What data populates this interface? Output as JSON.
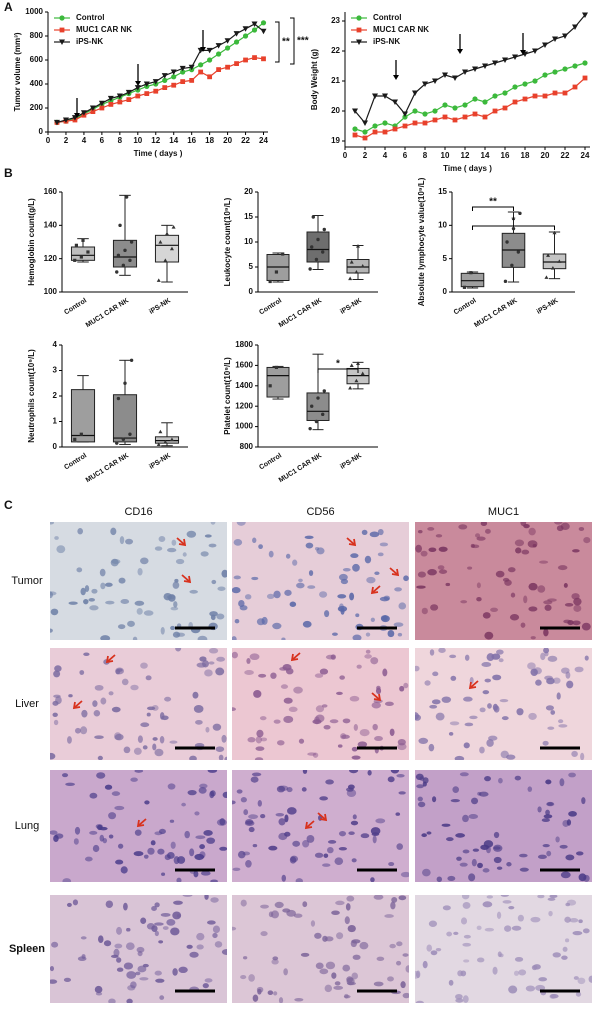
{
  "panel_labels": [
    "A",
    "B",
    "C"
  ],
  "chart_data": [
    {
      "type": "line",
      "y_label": "Tumor volume (mm³)",
      "x_label": "Time ( days )",
      "x": [
        1,
        2,
        3,
        4,
        5,
        6,
        7,
        8,
        9,
        10,
        11,
        12,
        13,
        14,
        15,
        16,
        17,
        18,
        19,
        20,
        21,
        22,
        23,
        24
      ],
      "xlim": [
        0,
        24.5
      ],
      "xticks": [
        0,
        2,
        4,
        6,
        8,
        10,
        12,
        14,
        16,
        18,
        20,
        22,
        24
      ],
      "ylim": [
        0,
        1000
      ],
      "yticks": [
        0,
        200,
        400,
        600,
        800,
        1000
      ],
      "annotations": [
        "**",
        "***"
      ],
      "series": [
        {
          "name": "Control",
          "color": "#3cb93c",
          "marker": "circle",
          "values": [
            80,
            90,
            110,
            150,
            190,
            230,
            260,
            290,
            320,
            350,
            380,
            400,
            430,
            460,
            500,
            520,
            560,
            600,
            650,
            700,
            750,
            800,
            850,
            910
          ]
        },
        {
          "name": "MUC1 CAR NK",
          "color": "#e8412c",
          "marker": "square",
          "values": [
            80,
            90,
            100,
            140,
            170,
            200,
            230,
            250,
            270,
            300,
            320,
            340,
            370,
            390,
            420,
            430,
            500,
            460,
            520,
            540,
            570,
            600,
            620,
            610
          ]
        },
        {
          "name": "iPS-NK",
          "color": "#1a1a1a",
          "marker": "triangle-down",
          "values": [
            80,
            100,
            120,
            160,
            200,
            240,
            280,
            300,
            330,
            370,
            400,
            420,
            470,
            500,
            530,
            540,
            680,
            680,
            720,
            760,
            820,
            860,
            900,
            840
          ]
        }
      ]
    },
    {
      "type": "line",
      "y_label": "Body Weight (g)",
      "x_label": "Time ( days )",
      "x": [
        1,
        2,
        3,
        4,
        5,
        6,
        7,
        8,
        9,
        10,
        11,
        12,
        13,
        14,
        15,
        16,
        17,
        18,
        19,
        20,
        21,
        22,
        23,
        24
      ],
      "xlim": [
        0,
        24.5
      ],
      "xticks": [
        0,
        2,
        4,
        6,
        8,
        10,
        12,
        14,
        16,
        18,
        20,
        22,
        24
      ],
      "ylim": [
        18.8,
        23.3
      ],
      "yticks": [
        19,
        20,
        21,
        22,
        23
      ],
      "annotations": [],
      "series": [
        {
          "name": "Control",
          "color": "#3cb93c",
          "marker": "circle",
          "values": [
            19.4,
            19.3,
            19.5,
            19.6,
            19.5,
            19.8,
            20,
            19.9,
            20,
            20.2,
            20.1,
            20.2,
            20.4,
            20.3,
            20.5,
            20.6,
            20.8,
            20.9,
            21,
            21.2,
            21.3,
            21.4,
            21.5,
            21.6
          ]
        },
        {
          "name": "MUC1 CAR NK",
          "color": "#e8412c",
          "marker": "square",
          "values": [
            19.2,
            19.1,
            19.3,
            19.3,
            19.4,
            19.5,
            19.6,
            19.6,
            19.7,
            19.8,
            19.7,
            19.8,
            19.9,
            19.8,
            20,
            20.1,
            20.3,
            20.4,
            20.5,
            20.5,
            20.6,
            20.6,
            20.8,
            21.1
          ]
        },
        {
          "name": "iPS-NK",
          "color": "#1a1a1a",
          "marker": "triangle-down",
          "values": [
            20,
            19.6,
            20.5,
            20.5,
            20.3,
            19.9,
            20.6,
            20.9,
            21,
            21.2,
            21.1,
            21.3,
            21.4,
            21.5,
            21.6,
            21.7,
            21.8,
            21.9,
            22,
            22.2,
            22.4,
            22.5,
            22.8,
            23.2
          ]
        }
      ]
    },
    {
      "type": "box",
      "y_label": "Hemoglobin count(g/L)",
      "categories": [
        "Control",
        "MUC1 CAR NK",
        "iPS-NK"
      ],
      "colors": [
        "#bdbdbd",
        "#8c8c8c",
        "#d6d6d6"
      ],
      "ylim": [
        100,
        160
      ],
      "yticks": [
        100,
        120,
        140,
        160
      ],
      "annotations": [],
      "boxes": [
        {
          "min": 118,
          "q1": 119,
          "median": 122,
          "q3": 127,
          "max": 132,
          "points": [
            119,
            121,
            124,
            128,
            131
          ]
        },
        {
          "min": 110,
          "q1": 115,
          "median": 121,
          "q3": 131,
          "max": 158,
          "points": [
            112,
            116,
            119,
            122,
            125,
            130,
            140,
            157
          ]
        },
        {
          "min": 106,
          "q1": 118,
          "median": 128,
          "q3": 134,
          "max": 140,
          "points": [
            107,
            119,
            126,
            130,
            135,
            139
          ]
        }
      ]
    },
    {
      "type": "box",
      "y_label": "Leukocyte count(10⁹/L)",
      "categories": [
        "Control",
        "MUC1 CAR NK",
        "iPS-NK"
      ],
      "colors": [
        "#9e9e9e",
        "#6e6e6e",
        "#b5b5b5"
      ],
      "ylim": [
        0,
        20
      ],
      "yticks": [
        0,
        5,
        10,
        15,
        20
      ],
      "annotations": [],
      "boxes": [
        {
          "min": 2,
          "q1": 2.3,
          "median": 5,
          "q3": 7.5,
          "max": 7.8,
          "points": [
            2.1,
            4,
            7.6
          ]
        },
        {
          "min": 4.5,
          "q1": 6,
          "median": 8.5,
          "q3": 12,
          "max": 15.3,
          "points": [
            4.6,
            6.5,
            8,
            9,
            10.5,
            12.5,
            15
          ]
        },
        {
          "min": 2.5,
          "q1": 3.8,
          "median": 5,
          "q3": 6.5,
          "max": 9.3,
          "points": [
            2.7,
            4,
            5.2,
            6,
            9.2
          ]
        }
      ]
    },
    {
      "type": "box",
      "y_label": "Absolute lymphocyte value(10⁹/L)",
      "categories": [
        "Control",
        "MUC1 CAR NK",
        "iPS-NK"
      ],
      "colors": [
        "#9e9e9e",
        "#8c8c8c",
        "#c4c4c4"
      ],
      "ylim": [
        0,
        15
      ],
      "yticks": [
        0,
        5,
        10,
        15
      ],
      "annotations": [
        "**",
        "*"
      ],
      "boxes": [
        {
          "min": 0.6,
          "q1": 0.8,
          "median": 1.7,
          "q3": 2.8,
          "max": 3,
          "points": [
            0.7,
            2.9
          ]
        },
        {
          "min": 1.5,
          "q1": 3.7,
          "median": 6.3,
          "q3": 8.8,
          "max": 12,
          "points": [
            1.6,
            4,
            6,
            7.5,
            9.5,
            11.8
          ]
        },
        {
          "min": 2,
          "q1": 3.5,
          "median": 4.5,
          "q3": 5.7,
          "max": 9,
          "points": [
            2.2,
            3.6,
            4.6,
            5.5,
            8.9
          ]
        }
      ]
    },
    {
      "type": "box",
      "y_label": "Neutrophils count(10⁹/L)",
      "categories": [
        "Control",
        "MUC1 CAR NK",
        "iPS-NK"
      ],
      "colors": [
        "#9e9e9e",
        "#8c8c8c",
        "#c4c4c4"
      ],
      "ylim": [
        0,
        4
      ],
      "yticks": [
        0,
        1,
        2,
        3,
        4
      ],
      "annotations": [],
      "boxes": [
        {
          "min": 0.2,
          "q1": 0.2,
          "median": 0.45,
          "q3": 2.25,
          "max": 2.8,
          "points": [
            0.3,
            0.5
          ]
        },
        {
          "min": 0.1,
          "q1": 0.2,
          "median": 0.35,
          "q3": 2.05,
          "max": 3.4,
          "points": [
            0.15,
            0.3,
            0.5,
            1.9,
            2.5,
            3.4
          ]
        },
        {
          "min": 0.05,
          "q1": 0.15,
          "median": 0.25,
          "q3": 0.4,
          "max": 0.95,
          "points": [
            0.1,
            0.2,
            0.3,
            0.6
          ]
        }
      ]
    },
    {
      "type": "box",
      "y_label": "Platelet count(10⁹/L)",
      "categories": [
        "Control",
        "MUC1 CAR NK",
        "iPS-NK"
      ],
      "colors": [
        "#9e9e9e",
        "#8c8c8c",
        "#c4c4c4"
      ],
      "ylim": [
        800,
        1800
      ],
      "yticks": [
        800,
        1000,
        1200,
        1400,
        1600,
        1800
      ],
      "annotations": [
        "*"
      ],
      "boxes": [
        {
          "min": 1270,
          "q1": 1290,
          "median": 1500,
          "q3": 1580,
          "max": 1590,
          "points": [
            1400,
            1580
          ]
        },
        {
          "min": 970,
          "q1": 1060,
          "median": 1150,
          "q3": 1330,
          "max": 1710,
          "points": [
            980,
            1050,
            1120,
            1200,
            1280,
            1350
          ]
        },
        {
          "min": 1370,
          "q1": 1420,
          "median": 1500,
          "q3": 1570,
          "max": 1630,
          "points": [
            1380,
            1450,
            1520,
            1600,
            1620
          ]
        }
      ]
    }
  ],
  "histology": {
    "columns": [
      "CD16",
      "CD56",
      "MUC1"
    ],
    "rows": [
      "Tumor",
      "Liver",
      "Lung",
      "Spleen"
    ]
  }
}
